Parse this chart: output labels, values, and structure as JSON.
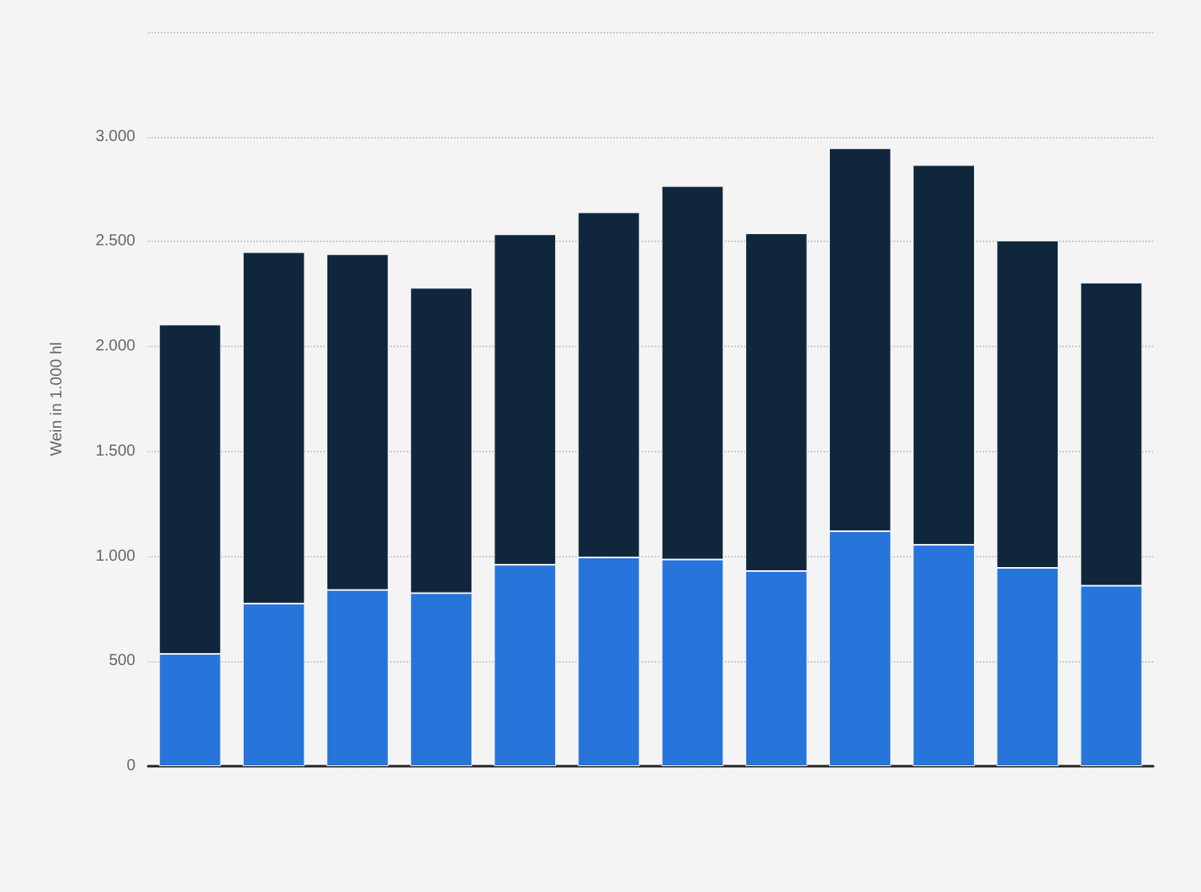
{
  "chart_data": {
    "type": "bar",
    "stacked": true,
    "ylabel": "Wein in 1.000 hl",
    "categories": [
      null,
      null,
      null,
      null,
      null,
      null,
      null,
      null,
      null,
      null,
      null,
      null
    ],
    "series": [
      {
        "color": "#2775db",
        "values": [
          535,
          775,
          840,
          825,
          960,
          995,
          985,
          930,
          1120,
          1055,
          945,
          860
        ]
      },
      {
        "color": "#0f263d",
        "values": [
          1570,
          1675,
          1600,
          1455,
          1575,
          1645,
          1780,
          1610,
          1825,
          1810,
          1560,
          1445
        ]
      }
    ],
    "ylim": [
      0,
      3500
    ],
    "yticks": [
      0,
      500,
      {
        "value": 1000,
        "label": "1.000"
      },
      {
        "value": 1500,
        "label": "1.500"
      },
      {
        "value": 2000,
        "label": "2.000"
      },
      {
        "value": 2500,
        "label": "2.500"
      },
      {
        "value": 3000,
        "label": "3.000"
      },
      {
        "value": 3500,
        "label": null
      }
    ],
    "grid": "y"
  }
}
